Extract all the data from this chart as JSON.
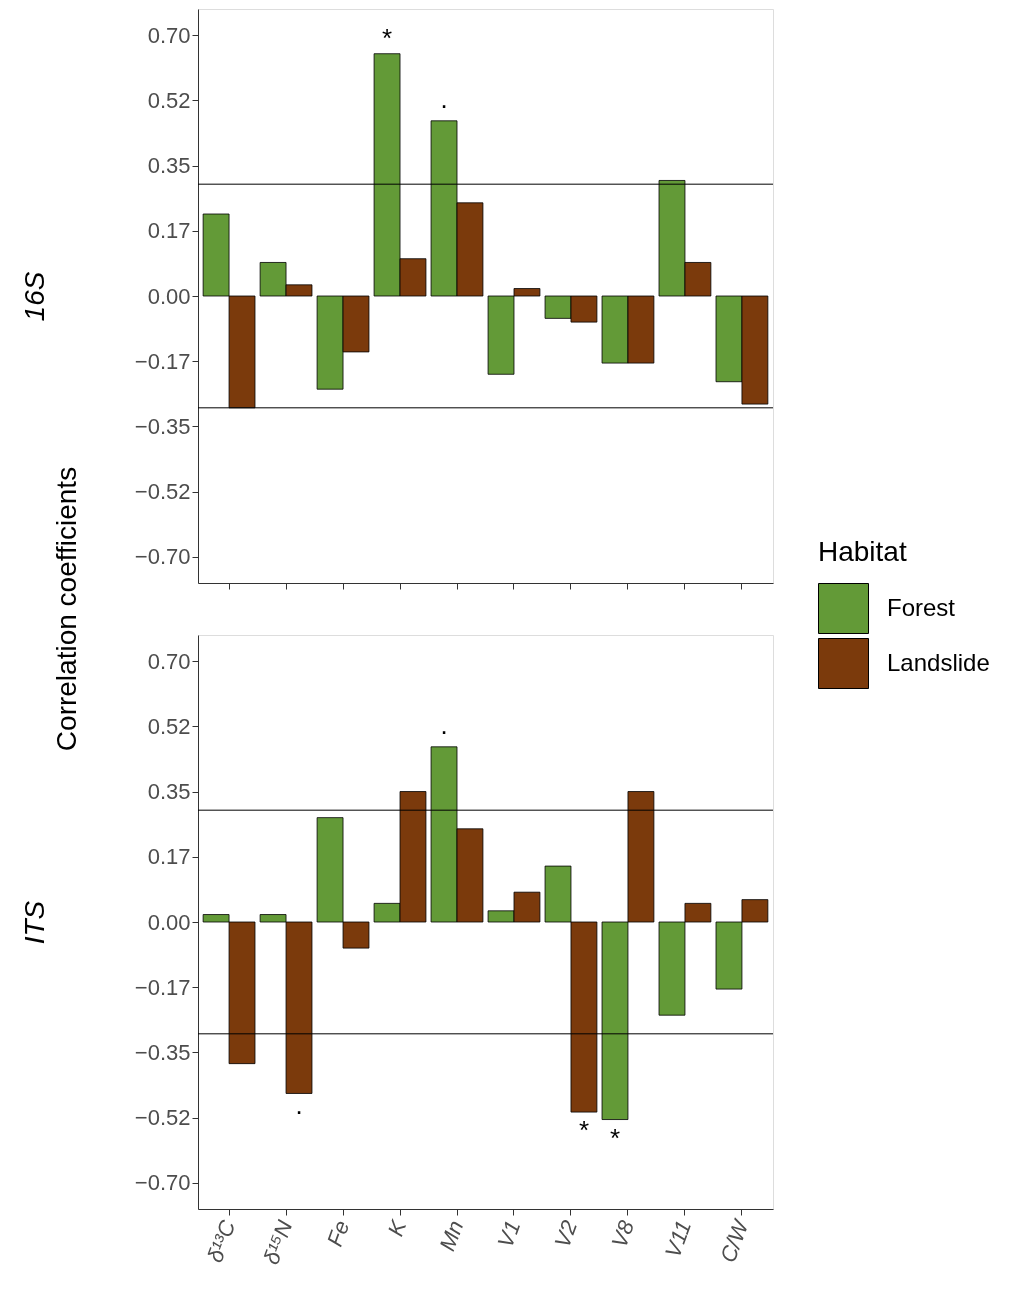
{
  "chart_data": [
    {
      "type": "bar",
      "title": "16S",
      "ylabel": "Correlation coefficients",
      "legend_title": "Habitat",
      "legend": "right",
      "grid": false,
      "tick_labels": "y",
      "categories": [
        "δ¹³C",
        "δ¹⁵N",
        "Fe",
        "K",
        "Mn",
        "V1",
        "V2",
        "V8",
        "V11",
        "C/W"
      ],
      "series": [
        {
          "name": "Forest",
          "color": "#639a37",
          "values": [
            0.22,
            0.09,
            -0.25,
            0.65,
            0.47,
            -0.21,
            -0.06,
            -0.18,
            0.31,
            -0.23
          ]
        },
        {
          "name": "Landslide",
          "color": "#7b3a0c",
          "values": [
            -0.3,
            0.03,
            -0.15,
            0.1,
            0.25,
            0.02,
            -0.07,
            -0.18,
            0.09,
            -0.29
          ]
        }
      ],
      "ylim": [
        -0.77,
        0.77
      ],
      "yticks": [
        {
          "value": 0.7,
          "label": "0.70"
        },
        {
          "value": 0.525,
          "label": "0.52"
        },
        {
          "value": 0.35,
          "label": "0.35"
        },
        {
          "value": 0.175,
          "label": "0.17"
        },
        {
          "value": 0,
          "label": "0.00"
        },
        {
          "value": -0.175,
          "label": "−0.17"
        },
        {
          "value": -0.35,
          "label": "−0.35"
        },
        {
          "value": -0.525,
          "label": "−0.52"
        },
        {
          "value": -0.7,
          "label": "−0.70"
        }
      ],
      "ref_lines": [
        {
          "axis": "y",
          "value": 0.3,
          "label": null,
          "color": "#000000"
        },
        {
          "axis": "y",
          "value": -0.3,
          "label": null,
          "color": "#000000"
        }
      ],
      "annotations": [
        {
          "text": "*",
          "x": "K",
          "y": 0.65
        },
        {
          "text": "·",
          "x": "Mn",
          "y": 0.47
        }
      ]
    },
    {
      "type": "bar",
      "title": "ITS",
      "grid": false,
      "categories": [
        "δ¹³C",
        "δ¹⁵N",
        "Fe",
        "K",
        "Mn",
        "V1",
        "V2",
        "V8",
        "V11",
        "C/W"
      ],
      "series": [
        {
          "name": "Forest",
          "color": "#639a37",
          "values": [
            0.02,
            0.02,
            0.28,
            0.05,
            0.47,
            0.03,
            0.15,
            -0.53,
            -0.25,
            -0.18
          ]
        },
        {
          "name": "Landslide",
          "color": "#7b3a0c",
          "values": [
            -0.38,
            -0.46,
            -0.07,
            0.35,
            0.25,
            0.08,
            -0.51,
            0.35,
            0.05,
            0.06
          ]
        }
      ],
      "ylim": [
        -0.77,
        0.77
      ],
      "yticks": [
        {
          "value": 0.7,
          "label": "0.70"
        },
        {
          "value": 0.525,
          "label": "0.52"
        },
        {
          "value": 0.35,
          "label": "0.35"
        },
        {
          "value": 0.175,
          "label": "0.17"
        },
        {
          "value": 0,
          "label": "0.00"
        },
        {
          "value": -0.175,
          "label": "−0.17"
        },
        {
          "value": -0.35,
          "label": "−0.35"
        },
        {
          "value": -0.525,
          "label": "−0.52"
        },
        {
          "value": -0.7,
          "label": "−0.70"
        }
      ],
      "ref_lines": [
        {
          "axis": "y",
          "value": 0.3,
          "label": null,
          "color": "#000000"
        },
        {
          "axis": "y",
          "value": -0.3,
          "label": null,
          "color": "#000000"
        }
      ],
      "annotations": [
        {
          "text": "·",
          "x": "Mn",
          "y": 0.47
        },
        {
          "text": "·",
          "x": "δ¹⁵N",
          "y": -0.46
        },
        {
          "text": "*",
          "x": "V2",
          "y": -0.51
        },
        {
          "text": "*",
          "x": "V8",
          "y": -0.53
        }
      ]
    }
  ]
}
